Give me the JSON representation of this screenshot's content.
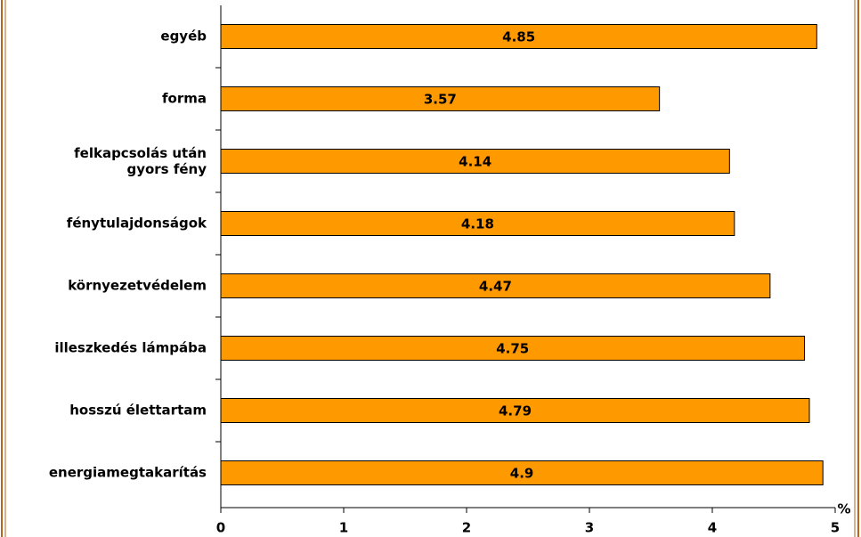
{
  "chart_data": {
    "type": "bar",
    "orientation": "horizontal",
    "categories": [
      "egyéb",
      "forma",
      "felkapcsolás után\ngyors fény",
      "fénytulajdonságok",
      "környezetvédelem",
      "illeszkedés lámpába",
      "hosszú élettartam",
      "energiamegtakarítás"
    ],
    "values": [
      4.85,
      3.57,
      4.14,
      4.18,
      4.47,
      4.75,
      4.79,
      4.9
    ],
    "color": "#ff9900",
    "xlim": [
      0,
      5
    ],
    "xticks": [
      0,
      1,
      2,
      3,
      4,
      5
    ],
    "x_label": "%",
    "grid": false
  }
}
